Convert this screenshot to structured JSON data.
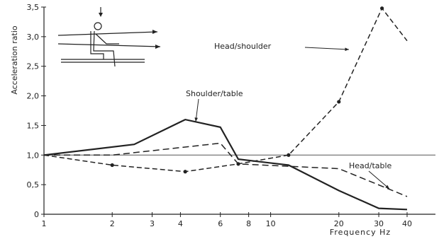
{
  "chart_data": {
    "type": "line",
    "xlabel": "Frequency Hz",
    "ylabel": "Acceleration ratio",
    "xscale": "log",
    "xlim": [
      1,
      40
    ],
    "ylim": [
      0,
      3.5
    ],
    "x_ticks": [
      1,
      2,
      3,
      4,
      6,
      8,
      10,
      20,
      30,
      40
    ],
    "y_ticks": [
      "0",
      "0,5",
      "1,0",
      "1,5",
      "2,0",
      "2,5",
      "3,0",
      "3,5"
    ],
    "y_tick_values": [
      0,
      0.5,
      1.0,
      1.5,
      2.0,
      2.5,
      3.0,
      3.5
    ],
    "reference_line": 1.0,
    "series": [
      {
        "name": "Shoulder/table",
        "style": "solid",
        "points": [
          [
            1,
            1.0
          ],
          [
            2.5,
            1.18
          ],
          [
            4.2,
            1.6
          ],
          [
            6,
            1.47
          ],
          [
            7.2,
            0.93
          ],
          [
            12,
            0.83
          ],
          [
            20,
            0.4
          ],
          [
            30,
            0.1
          ],
          [
            40,
            0.08
          ]
        ]
      },
      {
        "name": "Head/shoulder",
        "style": "dashed",
        "markers": true,
        "points": [
          [
            1,
            1.0
          ],
          [
            2,
            0.83
          ],
          [
            4.2,
            0.72
          ],
          [
            7.2,
            0.85
          ],
          [
            12,
            1.0
          ],
          [
            20,
            1.9
          ],
          [
            31,
            3.48
          ],
          [
            40,
            2.93
          ]
        ]
      },
      {
        "name": "Head/table",
        "style": "dashed",
        "markers": false,
        "points": [
          [
            1,
            1.0
          ],
          [
            2,
            1.0
          ],
          [
            6,
            1.2
          ],
          [
            7.2,
            0.85
          ],
          [
            20,
            0.77
          ],
          [
            40,
            0.3
          ]
        ]
      }
    ],
    "annotations": [
      {
        "text": "Shoulder/table",
        "target": "Shoulder/table"
      },
      {
        "text": "Head/shoulder",
        "target": "Head/shoulder"
      },
      {
        "text": "Head/table",
        "target": "Head/table"
      }
    ],
    "colors": {
      "line": "#222222",
      "grid": "#555555",
      "background": "#ffffff"
    }
  }
}
